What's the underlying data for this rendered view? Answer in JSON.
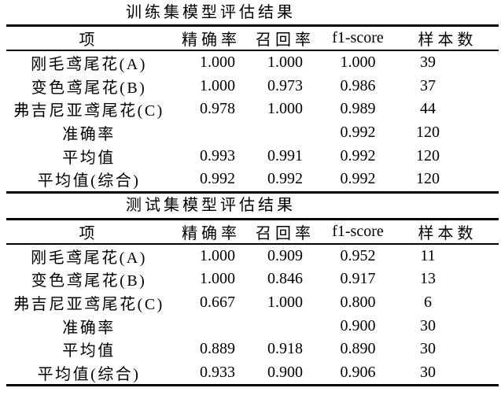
{
  "page": {
    "colors": {
      "background": "#ffffff",
      "text": "#000000",
      "rule": "#000000"
    }
  },
  "tables": [
    {
      "title": "训练集模型评估结果",
      "headers": [
        "项",
        "精确率",
        "召回率",
        "f1-score",
        "样本数"
      ],
      "rows": [
        [
          "刚毛鸢尾花(A)",
          "1.000",
          "1.000",
          "1.000",
          "39"
        ],
        [
          "变色鸢尾花(B)",
          "1.000",
          "0.973",
          "0.986",
          "37"
        ],
        [
          "弗吉尼亚鸢尾花(C)",
          "0.978",
          "1.000",
          "0.989",
          "44"
        ],
        [
          "准确率",
          "",
          "",
          "0.992",
          "120"
        ],
        [
          "平均值",
          "0.993",
          "0.991",
          "0.992",
          "120"
        ],
        [
          "平均值(综合)",
          "0.992",
          "0.992",
          "0.992",
          "120"
        ]
      ]
    },
    {
      "title": "测试集模型评估结果",
      "headers": [
        "项",
        "精确率",
        "召回率",
        "f1-score",
        "样本数"
      ],
      "rows": [
        [
          "刚毛鸢尾花(A)",
          "1.000",
          "0.909",
          "0.952",
          "11"
        ],
        [
          "变色鸢尾花(B)",
          "1.000",
          "0.846",
          "0.917",
          "13"
        ],
        [
          "弗吉尼亚鸢尾花(C)",
          "0.667",
          "1.000",
          "0.800",
          "6"
        ],
        [
          "准确率",
          "",
          "",
          "0.900",
          "30"
        ],
        [
          "平均值",
          "0.889",
          "0.918",
          "0.890",
          "30"
        ],
        [
          "平均值(综合)",
          "0.933",
          "0.900",
          "0.906",
          "30"
        ]
      ]
    }
  ]
}
